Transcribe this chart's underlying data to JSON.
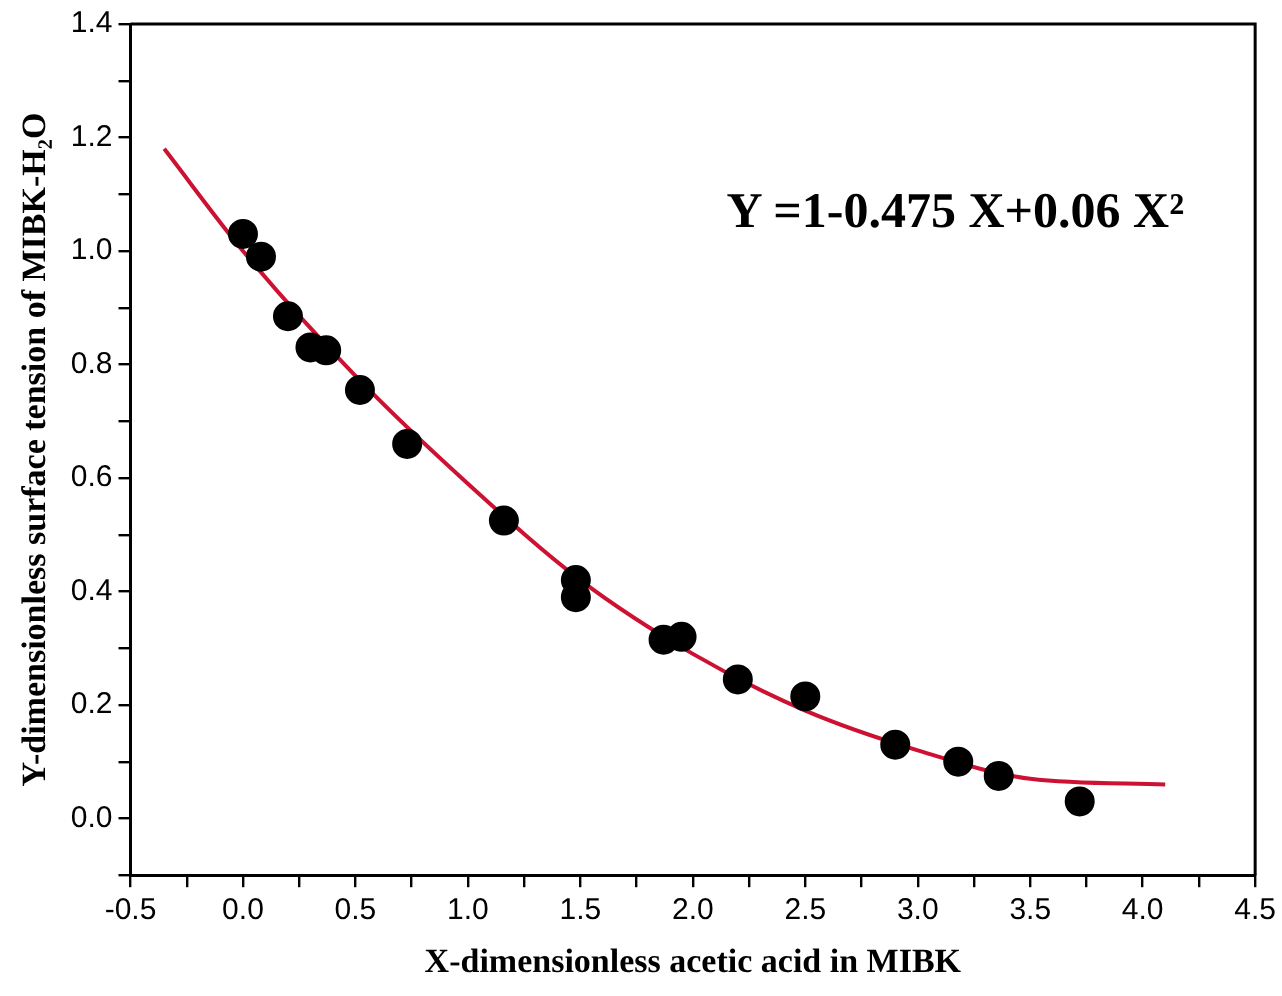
{
  "chart_data": {
    "type": "scatter",
    "xlabel": "X-dimensionless acetic acid in MIBK",
    "ylabel": "Y-dimensionless surface tension of MIBK-H₂O",
    "annotations": [
      "Y =1-0.475 X+0.06 X²"
    ],
    "xlim": [
      -0.5,
      4.5
    ],
    "ylim": [
      -0.1,
      1.4
    ],
    "xticks": [
      -0.5,
      {
        "value": -0.25,
        "label": null
      },
      {
        "value": 0,
        "label": "0.0"
      },
      {
        "value": 0.25,
        "label": null
      },
      0.5,
      {
        "value": 0.75,
        "label": null
      },
      {
        "value": 1,
        "label": "1.0"
      },
      {
        "value": 1.25,
        "label": null
      },
      1.5,
      {
        "value": 1.75,
        "label": null
      },
      {
        "value": 2,
        "label": "2.0"
      },
      {
        "value": 2.25,
        "label": null
      },
      2.5,
      {
        "value": 2.75,
        "label": null
      },
      {
        "value": 3,
        "label": "3.0"
      },
      {
        "value": 3.25,
        "label": null
      },
      3.5,
      {
        "value": 3.75,
        "label": null
      },
      {
        "value": 4,
        "label": "4.0"
      },
      {
        "value": 4.25,
        "label": null
      },
      4.5
    ],
    "yticks": [
      {
        "value": -0.1,
        "label": null
      },
      {
        "value": 0,
        "label": "0.0"
      },
      {
        "value": 0.1,
        "label": null
      },
      0.2,
      {
        "value": 0.3,
        "label": null
      },
      0.4,
      {
        "value": 0.5,
        "label": null
      },
      0.6,
      {
        "value": 0.7,
        "label": null
      },
      0.8,
      {
        "value": 0.9,
        "label": null
      },
      {
        "value": 1,
        "label": "1.0"
      },
      {
        "value": 1.1,
        "label": null
      },
      1.2,
      {
        "value": 1.3,
        "label": null
      },
      1.4
    ],
    "grid": false,
    "legend": false,
    "marker": "circle",
    "series": [
      {
        "color": "#000000",
        "x": [
          0.0,
          0.08,
          0.2,
          0.3,
          0.37,
          0.52,
          0.73,
          1.16,
          1.48,
          1.48,
          1.87,
          1.95,
          2.2,
          2.5,
          2.9,
          3.18,
          3.36,
          3.72
        ],
        "values": [
          1.03,
          0.99,
          0.885,
          0.83,
          0.825,
          0.755,
          0.66,
          0.525,
          0.42,
          0.39,
          0.315,
          0.32,
          0.245,
          0.215,
          0.13,
          0.1,
          0.075,
          0.03
        ]
      },
      {
        "type": "line",
        "color": "#cc1133",
        "marker": "none",
        "x": [
          -0.35,
          0,
          0.5,
          1,
          1.5,
          2,
          2.5,
          3,
          3.5,
          4.1
        ],
        "values": [
          1.18,
          1.0,
          0.78,
          0.59,
          0.42,
          0.29,
          0.19,
          0.12,
          0.07,
          0.06
        ]
      }
    ]
  }
}
